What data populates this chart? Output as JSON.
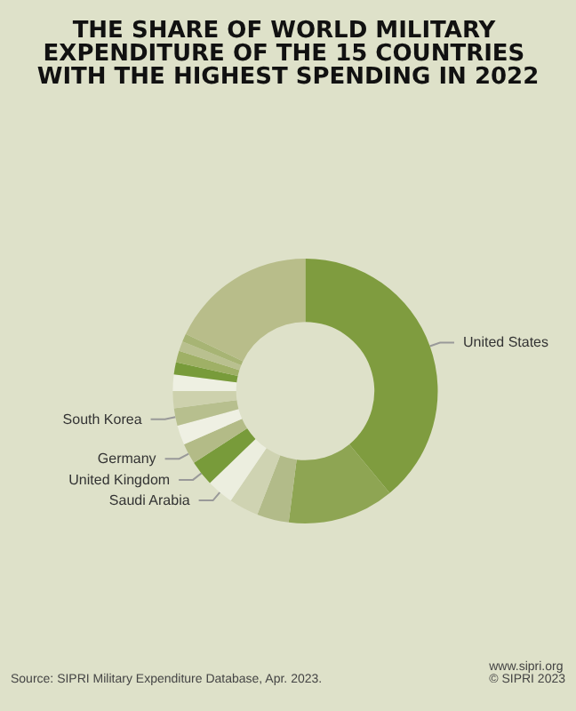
{
  "chart_data": {
    "type": "donut",
    "title": "THE SHARE OF WORLD MILITARY EXPENDITURE OF THE 15 COUNTRIES WITH THE HIGHEST SPENDING IN 2022",
    "categories": [
      "United States",
      null,
      null,
      null,
      "Saudi Arabia",
      "United Kingdom",
      "Germany",
      null,
      "South Korea",
      null,
      null,
      null,
      null,
      null,
      null,
      null
    ],
    "values": [
      39,
      13,
      3.9,
      3.6,
      3.3,
      3.1,
      2.5,
      2.4,
      2.1,
      2.1,
      2.0,
      1.5,
      1.4,
      1.2,
      1.0,
      17.9
    ],
    "colors": [
      "#7f9c3f",
      "#8ea553",
      "#b2bb89",
      "#cfd3b2",
      "#eceedf",
      "#789b3a",
      "#b3bb87",
      "#eff0e3",
      "#b7bf8e",
      "#cdd1ad",
      "#eef0e2",
      "#789b3a",
      "#9fb066",
      "#b9c08f",
      "#a7b474",
      "#b8bd8a"
    ],
    "annotations": [
      "Source: SIPRI Military Expenditure Database, Apr. 2023.",
      "www.sipri.org",
      "© SIPRI 2023"
    ],
    "legend": false
  }
}
